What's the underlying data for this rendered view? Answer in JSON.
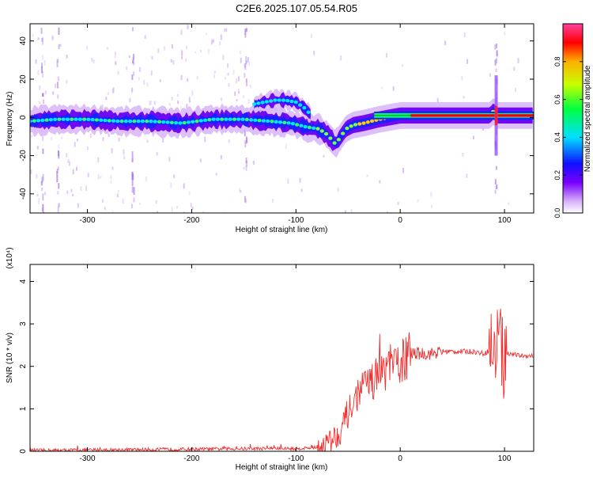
{
  "title": "C2E6.2025.107.05.54.R05",
  "chart_data": [
    {
      "type": "heatmap",
      "xlabel": "Height of straight line (km)",
      "ylabel": "Frequency (Hz)",
      "xlim": [
        -355,
        128
      ],
      "ylim": [
        -50,
        49
      ],
      "xticks": [
        -300,
        -200,
        -100,
        0,
        100
      ],
      "xtick_labels": [
        "-300",
        "-200",
        "-100",
        "0",
        "100"
      ],
      "yticks": [
        -40,
        -20,
        0,
        20,
        40
      ],
      "ytick_labels": [
        "-40",
        "-20",
        "0",
        "20",
        "40"
      ],
      "colorbar": {
        "label": "Normalized spectral amplitude",
        "range": [
          0,
          1
        ],
        "ticks": [
          0.0,
          0.2,
          0.4,
          0.6,
          0.8
        ],
        "tick_labels": [
          "0.0",
          "0.2",
          "0.4",
          "0.6",
          "0.8"
        ],
        "colormap": [
          "#ffffff",
          "#d8b4f8",
          "#7a00ff",
          "#1010ff",
          "#00e0ff",
          "#00ff40",
          "#c8ff00",
          "#ffb000",
          "#ff0000",
          "#ff40a0"
        ]
      },
      "traces": [
        {
          "name": "main",
          "x": [
            -355,
            -330,
            -300,
            -270,
            -240,
            -210,
            -180,
            -150,
            -125,
            -105,
            -90,
            -78,
            -70,
            -62,
            -57,
            -52,
            -45,
            -35,
            -20,
            0,
            20,
            50,
            75,
            85,
            88,
            90,
            92,
            95,
            100,
            128
          ],
          "y": [
            -2,
            -1,
            -1,
            -2,
            -2,
            -3,
            -1,
            -1,
            -2,
            -3,
            -5,
            -6,
            -9,
            -14,
            -10,
            -6,
            -4,
            -3,
            -1,
            1,
            1,
            1,
            1,
            1,
            2,
            4,
            1,
            1,
            1,
            1
          ]
        },
        {
          "name": "upper",
          "x": [
            -140,
            -130,
            -120,
            -110,
            -100,
            -92,
            -85
          ],
          "y": [
            7,
            8,
            9,
            9,
            8,
            5,
            1
          ]
        }
      ],
      "spike": {
        "x": 92,
        "ymin": -20,
        "ymax": 22
      }
    },
    {
      "type": "line",
      "xlabel": "Height of straight line (km)",
      "ylabel": "SNR (10 * v/v)",
      "scale_label": "(x10⁴)",
      "xlim": [
        -355,
        128
      ],
      "ylim": [
        0,
        4.4
      ],
      "xticks": [
        -300,
        -200,
        -100,
        0,
        100
      ],
      "xtick_labels": [
        "-300",
        "-200",
        "-100",
        "0",
        "100"
      ],
      "yticks": [
        0,
        1,
        2,
        3,
        4
      ],
      "ytick_labels": [
        "0",
        "1",
        "2",
        "3",
        "4"
      ],
      "color": "#ee3030",
      "series": [
        {
          "x": [
            -355,
            -300,
            -250,
            -200,
            -150,
            -120,
            -100,
            -80,
            -70,
            -60,
            -55,
            -50,
            -45,
            -40,
            -35,
            -30,
            -25,
            -20,
            -15,
            -10,
            -5,
            0,
            5,
            10,
            15,
            20,
            30,
            40,
            50,
            60,
            70,
            80,
            88,
            92,
            95,
            97,
            100,
            105,
            115,
            128
          ],
          "y": [
            0.02,
            0.03,
            0.04,
            0.05,
            0.06,
            0.07,
            0.06,
            0.09,
            0.2,
            0.4,
            0.6,
            0.9,
            1.1,
            1.4,
            1.5,
            1.6,
            1.7,
            1.8,
            1.9,
            2.0,
            2.0,
            2.1,
            2.2,
            2.3,
            2.3,
            2.3,
            2.3,
            2.35,
            2.35,
            2.35,
            2.35,
            2.3,
            2.4,
            2.3,
            3.0,
            2.2,
            2.3,
            2.3,
            2.25,
            2.25
          ]
        }
      ]
    }
  ]
}
